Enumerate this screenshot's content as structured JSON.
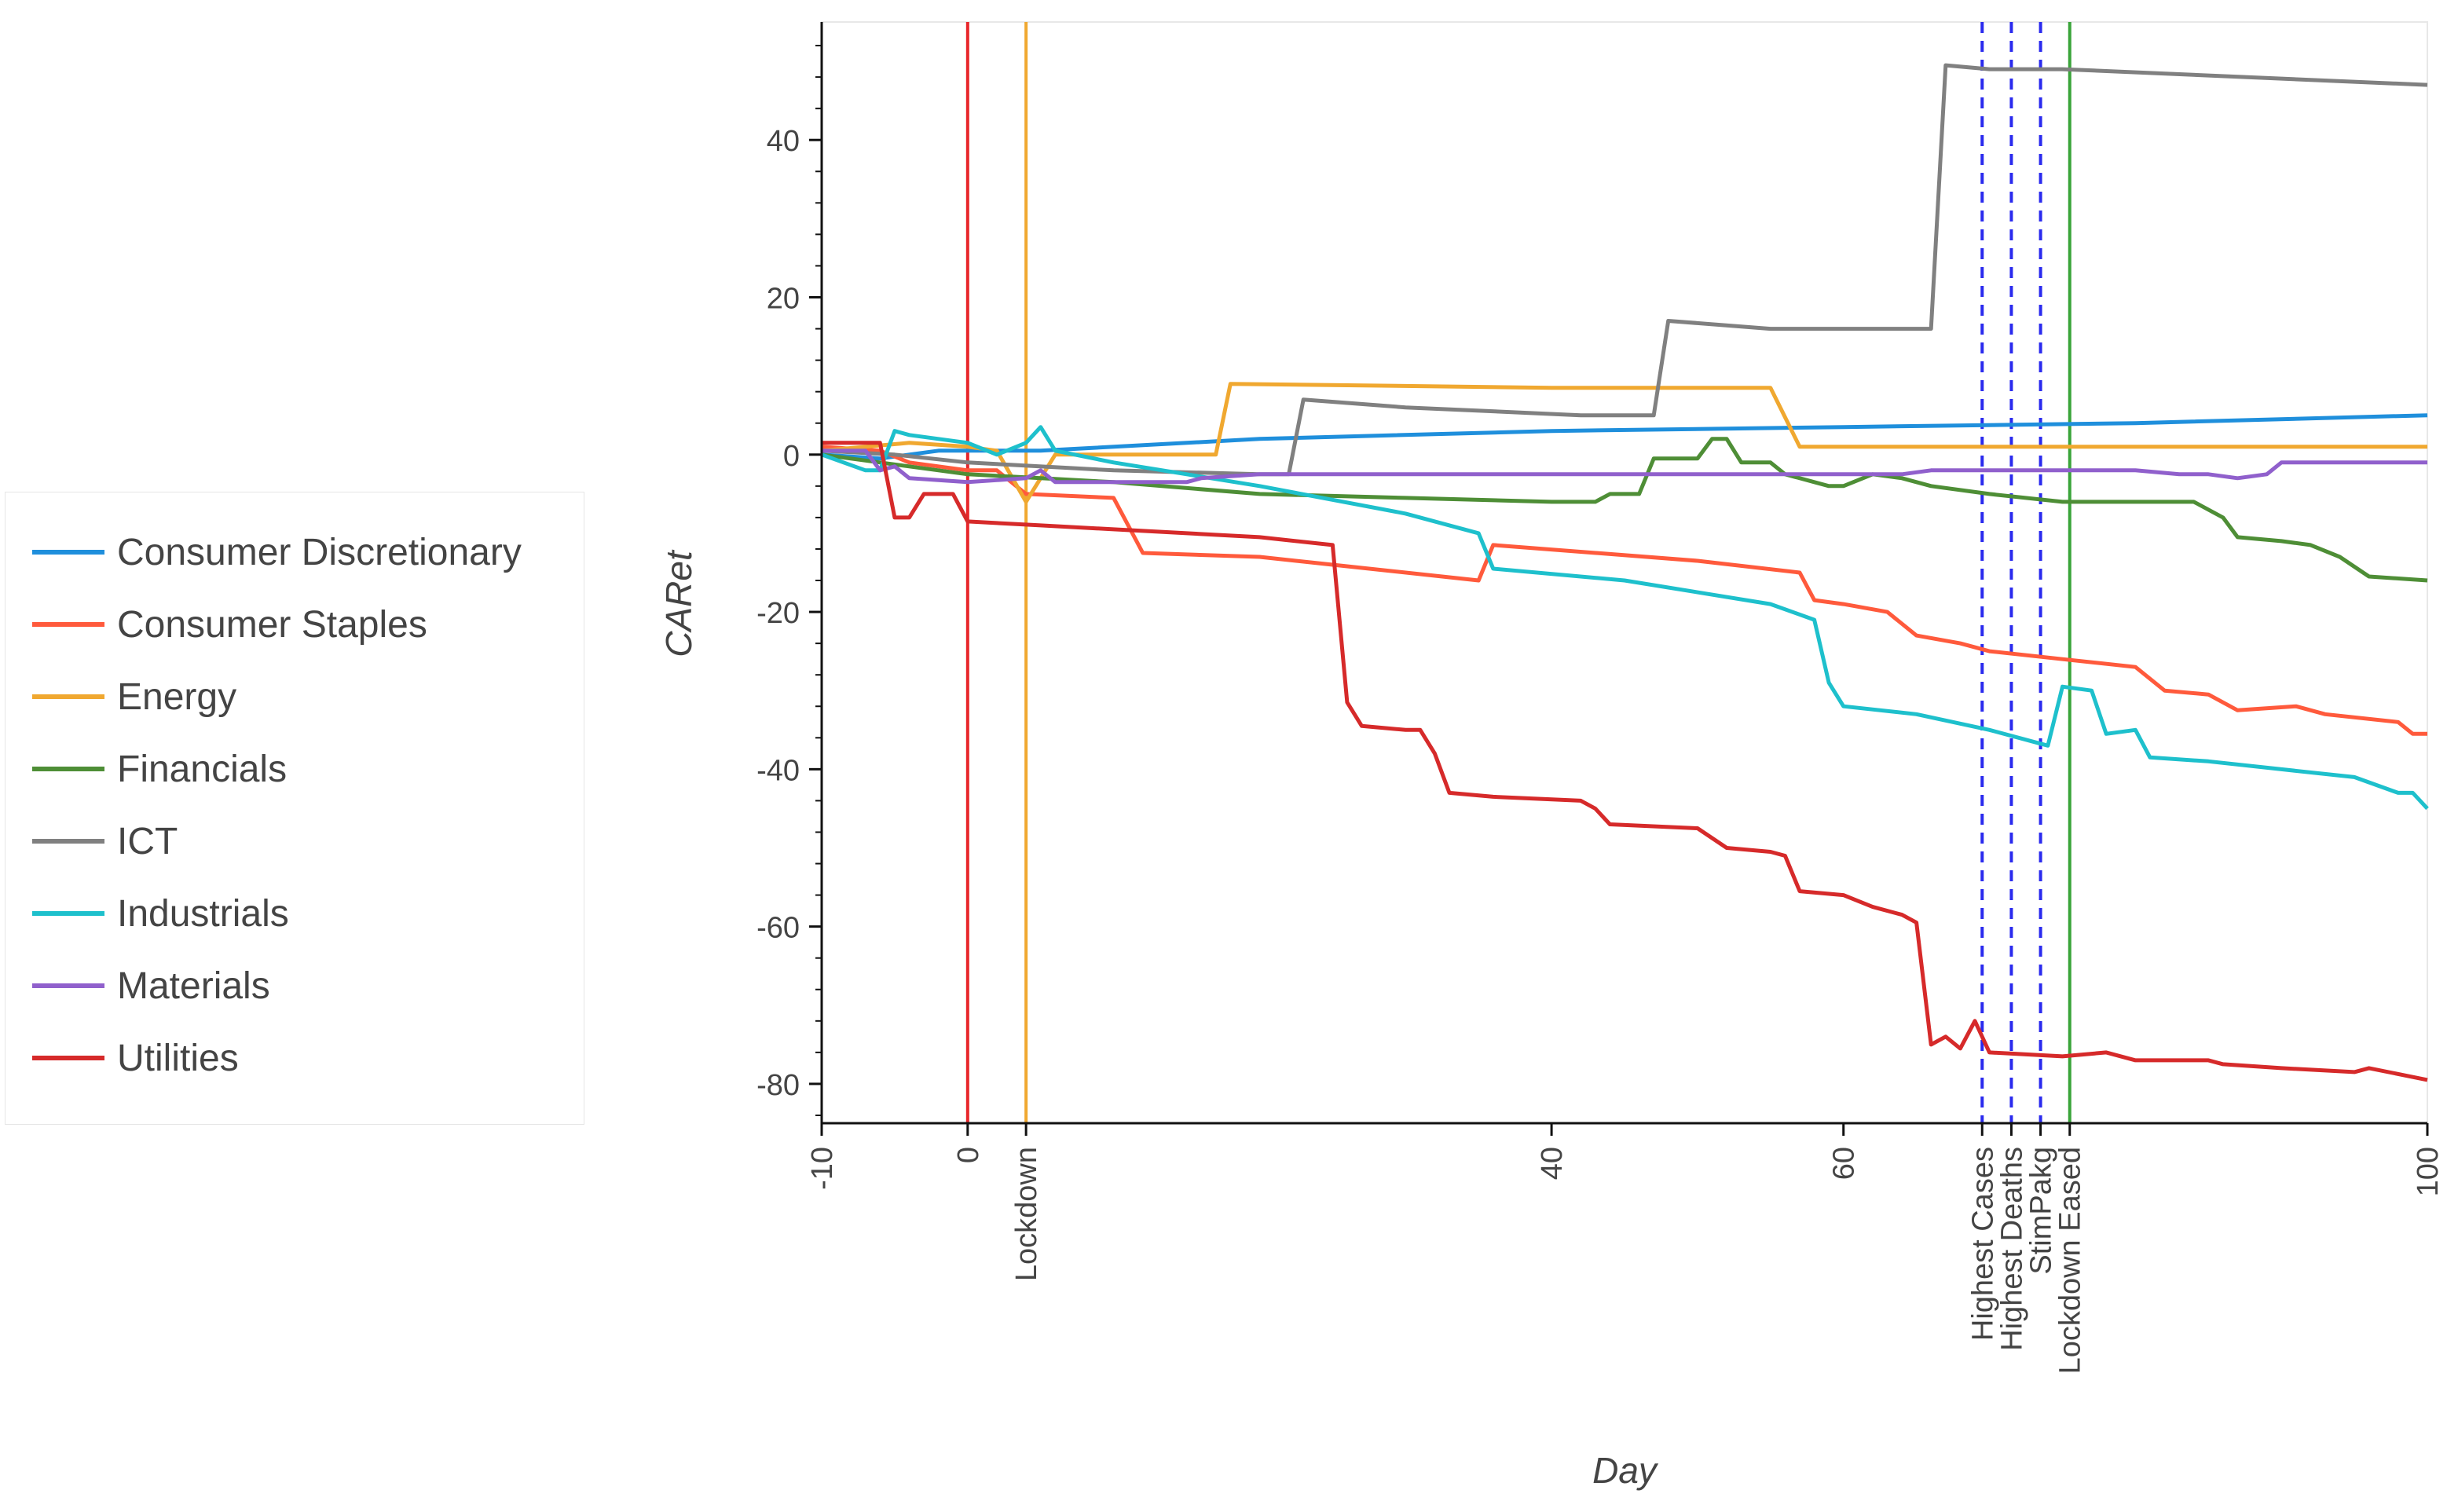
{
  "chart_data": {
    "type": "line",
    "title": "",
    "xlabel": "Day",
    "ylabel": "CARet",
    "xlim": [
      -10,
      100
    ],
    "ylim": [
      -85,
      55
    ],
    "x_ticks": [
      {
        "value": -10,
        "label": "-10"
      },
      {
        "value": 0,
        "label": "0"
      },
      {
        "value": 4,
        "label": "Lockdown"
      },
      {
        "value": 40,
        "label": "40"
      },
      {
        "value": 60,
        "label": "60"
      },
      {
        "value": 69.5,
        "label": "Highest Cases"
      },
      {
        "value": 71.5,
        "label": "Highest Deaths"
      },
      {
        "value": 73.5,
        "label": "StimPakg"
      },
      {
        "value": 75.5,
        "label": "Lockdown Eased"
      },
      {
        "value": 100,
        "label": "100"
      }
    ],
    "y_ticks": [
      40,
      20,
      0,
      -20,
      -40,
      -60,
      -80
    ],
    "event_lines": [
      {
        "x": 0,
        "color": "#e8262a",
        "dash": "solid"
      },
      {
        "x": 4,
        "color": "#f0a830",
        "dash": "solid"
      },
      {
        "x": 69.5,
        "color": "#2a2aee",
        "dash": "dashed"
      },
      {
        "x": 71.5,
        "color": "#2a2aee",
        "dash": "dashed"
      },
      {
        "x": 73.5,
        "color": "#2a2aee",
        "dash": "dashed"
      },
      {
        "x": 75.5,
        "color": "#3aa43a",
        "dash": "solid"
      }
    ],
    "series": [
      {
        "name": "Consumer Discretionary",
        "color": "#1f8fdc",
        "points": [
          [
            -10,
            0
          ],
          [
            -6,
            -0.5
          ],
          [
            -2,
            0.5
          ],
          [
            0,
            0.5
          ],
          [
            5,
            0.5
          ],
          [
            20,
            2
          ],
          [
            40,
            3
          ],
          [
            60,
            3.5
          ],
          [
            80,
            4
          ],
          [
            100,
            5
          ]
        ]
      },
      {
        "name": "Consumer Staples",
        "color": "#ff5a3c",
        "points": [
          [
            -10,
            1
          ],
          [
            -6,
            0.5
          ],
          [
            -4,
            -1
          ],
          [
            0,
            -2
          ],
          [
            2,
            -2
          ],
          [
            4,
            -5
          ],
          [
            10,
            -5.5
          ],
          [
            12,
            -12.5
          ],
          [
            20,
            -13
          ],
          [
            25,
            -14
          ],
          [
            35,
            -16
          ],
          [
            36,
            -11.5
          ],
          [
            50,
            -13.5
          ],
          [
            57,
            -15
          ],
          [
            58,
            -18.5
          ],
          [
            60,
            -19
          ],
          [
            63,
            -20
          ],
          [
            65,
            -23
          ],
          [
            68,
            -24
          ],
          [
            69,
            -24.5
          ],
          [
            70,
            -25
          ],
          [
            75,
            -26
          ],
          [
            80,
            -27
          ],
          [
            82,
            -30
          ],
          [
            85,
            -30.5
          ],
          [
            87,
            -32.5
          ],
          [
            91,
            -32
          ],
          [
            93,
            -33
          ],
          [
            98,
            -34
          ],
          [
            99,
            -35.5
          ],
          [
            100,
            -35.5
          ]
        ]
      },
      {
        "name": "Energy",
        "color": "#f0a830",
        "points": [
          [
            -10,
            0.5
          ],
          [
            -4,
            1.5
          ],
          [
            0,
            1
          ],
          [
            2,
            0.5
          ],
          [
            4,
            -6
          ],
          [
            6,
            0
          ],
          [
            15,
            0
          ],
          [
            17,
            0
          ],
          [
            18,
            9
          ],
          [
            40,
            8.5
          ],
          [
            48,
            8.5
          ],
          [
            55,
            8.5
          ],
          [
            57,
            1
          ],
          [
            60,
            1
          ],
          [
            75,
            1
          ],
          [
            100,
            1
          ]
        ]
      },
      {
        "name": "Financials",
        "color": "#4e8e36",
        "points": [
          [
            -10,
            0
          ],
          [
            -6,
            -1
          ],
          [
            -2,
            -2
          ],
          [
            0,
            -2.5
          ],
          [
            5,
            -3
          ],
          [
            10,
            -3.5
          ],
          [
            20,
            -5
          ],
          [
            30,
            -5.5
          ],
          [
            40,
            -6
          ],
          [
            43,
            -6
          ],
          [
            44,
            -5
          ],
          [
            46,
            -5
          ],
          [
            47,
            -0.5
          ],
          [
            48,
            -0.5
          ],
          [
            50,
            -0.5
          ],
          [
            51,
            2
          ],
          [
            52,
            2
          ],
          [
            53,
            -1
          ],
          [
            54,
            -1
          ],
          [
            55,
            -1
          ],
          [
            56,
            -2.5
          ],
          [
            58,
            -3.5
          ],
          [
            59,
            -4
          ],
          [
            60,
            -4
          ],
          [
            62,
            -2.5
          ],
          [
            64,
            -3
          ],
          [
            66,
            -4
          ],
          [
            70,
            -5
          ],
          [
            75,
            -6
          ],
          [
            80,
            -6
          ],
          [
            82,
            -6
          ],
          [
            84,
            -6
          ],
          [
            86,
            -8
          ],
          [
            87,
            -10.5
          ],
          [
            90,
            -11
          ],
          [
            92,
            -11.5
          ],
          [
            94,
            -13
          ],
          [
            96,
            -15.5
          ],
          [
            100,
            -16
          ]
        ]
      },
      {
        "name": "ICT",
        "color": "#808080",
        "points": [
          [
            -10,
            0.5
          ],
          [
            -5,
            0
          ],
          [
            0,
            -1
          ],
          [
            10,
            -2
          ],
          [
            20,
            -2.5
          ],
          [
            22,
            -2.5
          ],
          [
            23,
            7
          ],
          [
            30,
            6
          ],
          [
            42,
            5
          ],
          [
            45,
            5
          ],
          [
            47,
            5
          ],
          [
            48,
            17
          ],
          [
            55,
            16
          ],
          [
            60,
            16
          ],
          [
            65,
            16
          ],
          [
            66,
            16
          ],
          [
            67,
            49.5
          ],
          [
            70,
            49
          ],
          [
            75,
            49
          ],
          [
            100,
            47
          ]
        ]
      },
      {
        "name": "Industrials",
        "color": "#1ec0cc",
        "points": [
          [
            -10,
            0
          ],
          [
            -7,
            -2
          ],
          [
            -6,
            -2
          ],
          [
            -5,
            3
          ],
          [
            -4,
            2.5
          ],
          [
            0,
            1.5
          ],
          [
            2,
            0
          ],
          [
            4,
            1.5
          ],
          [
            5,
            3.5
          ],
          [
            6,
            0.5
          ],
          [
            10,
            -1
          ],
          [
            20,
            -4
          ],
          [
            30,
            -7.5
          ],
          [
            35,
            -10
          ],
          [
            36,
            -14.5
          ],
          [
            45,
            -16
          ],
          [
            55,
            -19
          ],
          [
            58,
            -21
          ],
          [
            59,
            -29
          ],
          [
            60,
            -32
          ],
          [
            65,
            -33
          ],
          [
            70,
            -35
          ],
          [
            73,
            -36.5
          ],
          [
            74,
            -37
          ],
          [
            75,
            -29.5
          ],
          [
            77,
            -30
          ],
          [
            78,
            -35.5
          ],
          [
            80,
            -35
          ],
          [
            81,
            -38.5
          ],
          [
            85,
            -39
          ],
          [
            90,
            -40
          ],
          [
            95,
            -41
          ],
          [
            98,
            -43
          ],
          [
            99,
            -43
          ],
          [
            100,
            -45
          ]
        ]
      },
      {
        "name": "Materials",
        "color": "#9060cc",
        "points": [
          [
            -10,
            0.5
          ],
          [
            -7,
            0.5
          ],
          [
            -6,
            -2
          ],
          [
            -5,
            -1.5
          ],
          [
            -4,
            -3
          ],
          [
            0,
            -3.5
          ],
          [
            4,
            -3
          ],
          [
            5,
            -2
          ],
          [
            6,
            -3.5
          ],
          [
            10,
            -3.5
          ],
          [
            15,
            -3.5
          ],
          [
            16,
            -3
          ],
          [
            20,
            -2.5
          ],
          [
            30,
            -2.5
          ],
          [
            40,
            -2.5
          ],
          [
            50,
            -2.5
          ],
          [
            60,
            -2.5
          ],
          [
            64,
            -2.5
          ],
          [
            66,
            -2
          ],
          [
            70,
            -2
          ],
          [
            75,
            -2
          ],
          [
            80,
            -2
          ],
          [
            83,
            -2.5
          ],
          [
            85,
            -2.5
          ],
          [
            87,
            -3
          ],
          [
            89,
            -2.5
          ],
          [
            90,
            -1
          ],
          [
            95,
            -1
          ],
          [
            100,
            -1
          ]
        ]
      },
      {
        "name": "Utilities",
        "color": "#d62a2a",
        "points": [
          [
            -10,
            1.5
          ],
          [
            -6,
            1.5
          ],
          [
            -5,
            -8
          ],
          [
            -4,
            -8
          ],
          [
            -3,
            -5
          ],
          [
            -2,
            -5
          ],
          [
            -1,
            -5
          ],
          [
            0,
            -8.5
          ],
          [
            5,
            -9
          ],
          [
            10,
            -9.5
          ],
          [
            20,
            -10.5
          ],
          [
            25,
            -11.5
          ],
          [
            26,
            -31.5
          ],
          [
            27,
            -34.5
          ],
          [
            30,
            -35
          ],
          [
            31,
            -35
          ],
          [
            32,
            -38
          ],
          [
            33,
            -43
          ],
          [
            36,
            -43.5
          ],
          [
            42,
            -44
          ],
          [
            43,
            -45
          ],
          [
            44,
            -47
          ],
          [
            50,
            -47.5
          ],
          [
            52,
            -50
          ],
          [
            55,
            -50.5
          ],
          [
            56,
            -51
          ],
          [
            57,
            -55.5
          ],
          [
            60,
            -56
          ],
          [
            62,
            -57.5
          ],
          [
            64,
            -58.5
          ],
          [
            65,
            -59.5
          ],
          [
            66,
            -75
          ],
          [
            67,
            -74
          ],
          [
            68,
            -75.5
          ],
          [
            69,
            -72
          ],
          [
            70,
            -76
          ],
          [
            75,
            -76.5
          ],
          [
            78,
            -76
          ],
          [
            80,
            -77
          ],
          [
            85,
            -77
          ],
          [
            86,
            -77.5
          ],
          [
            90,
            -78
          ],
          [
            95,
            -78.5
          ],
          [
            96,
            -78
          ],
          [
            100,
            -79.5
          ]
        ]
      }
    ]
  }
}
